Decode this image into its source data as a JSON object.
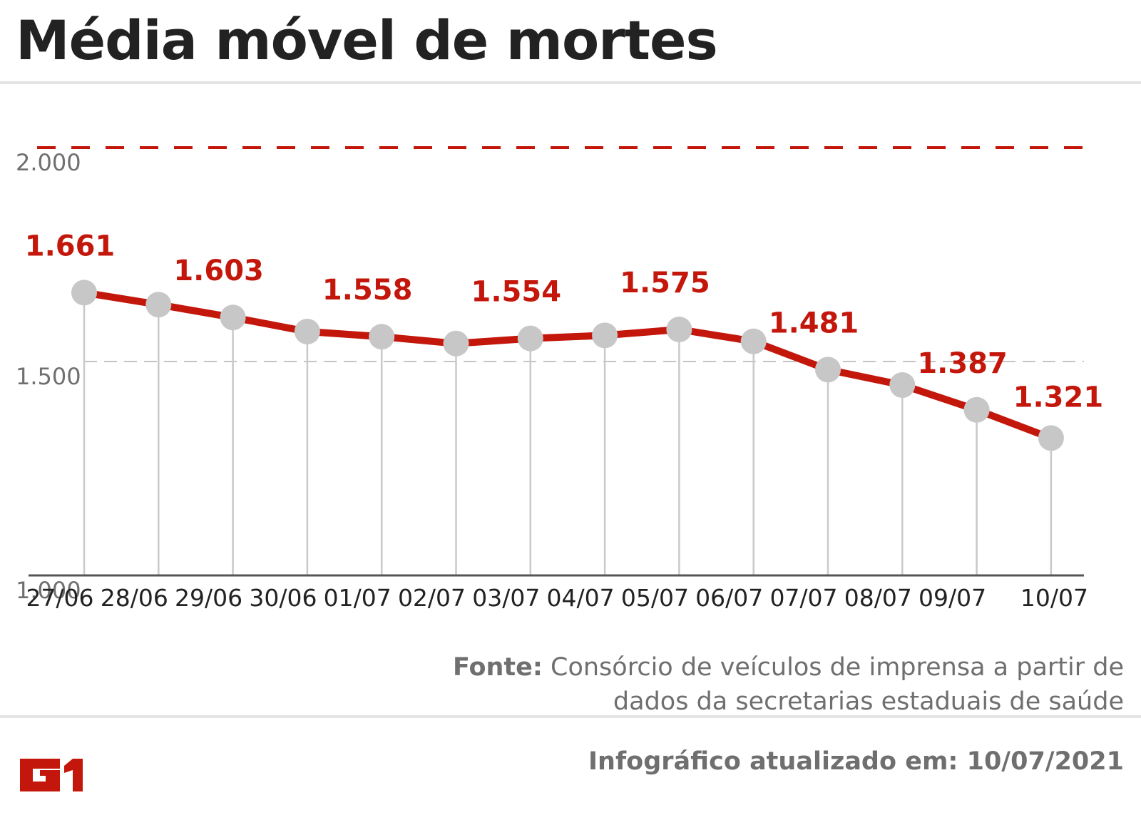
{
  "header": {
    "title": "Média móvel de mortes"
  },
  "footer": {
    "source_label": "Fonte:",
    "source_text": "Consórcio de veículos de imprensa a partir de dados da secretarias estaduais de saúde",
    "updated": "Infográfico atualizado em: 10/07/2021",
    "logo_text": "G1"
  },
  "colors": {
    "line": "#c4170c",
    "marker": "#c7c7c7",
    "axis_text": "#6f6f6f",
    "label_text": "#c4170c",
    "title_text": "#222222"
  },
  "chart_data": {
    "type": "line",
    "title": "Média móvel de mortes",
    "x": [
      "27/06",
      "28/06",
      "29/06",
      "30/06",
      "01/07",
      "02/07",
      "03/07",
      "04/07",
      "05/07",
      "06/07",
      "07/07",
      "08/07",
      "09/07",
      "10/07"
    ],
    "values": [
      1661,
      1633,
      1603,
      1570,
      1558,
      1542,
      1554,
      1561,
      1575,
      1547,
      1481,
      1445,
      1387,
      1321
    ],
    "data_labels": [
      "1.661",
      "",
      "1.603",
      "",
      "1.558",
      "",
      "1.554",
      "",
      "1.575",
      "",
      "1.481",
      "",
      "1.387",
      "1.321"
    ],
    "yticks": [
      1000,
      1500,
      2000
    ],
    "ytick_labels": [
      "1.000",
      "1.500",
      "2.000"
    ],
    "ylim": [
      1000,
      2000
    ],
    "reference_lines": [
      2000,
      1500
    ],
    "grid": false,
    "legend": "none",
    "xlabel": "",
    "ylabel": ""
  }
}
